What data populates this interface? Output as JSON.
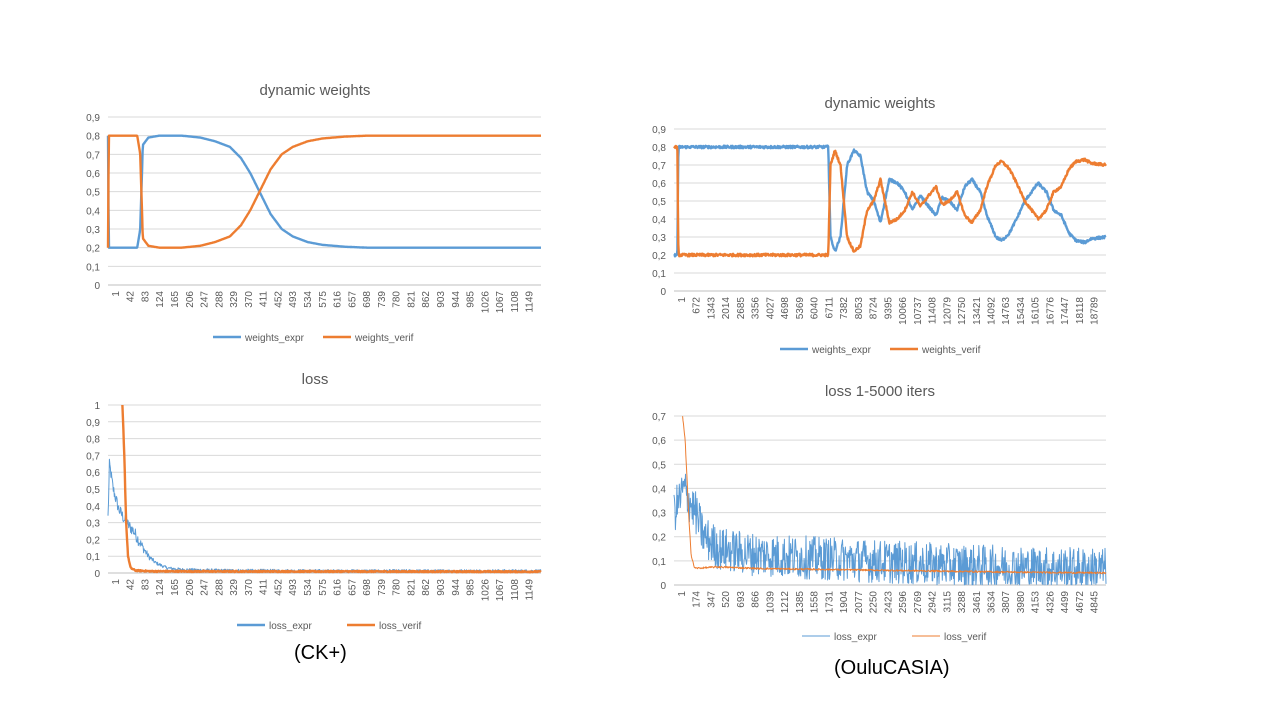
{
  "captions": {
    "left": "(CK+)",
    "right": "(OuluCASIA)"
  },
  "colors": {
    "expr": "#5B9BD5",
    "verif": "#ED7D31",
    "grid": "#d9d9d9",
    "text": "#595959"
  },
  "chart_data": [
    {
      "id": "ck-weights",
      "type": "line",
      "title": "dynamic weights",
      "ylim": [
        0,
        0.9
      ],
      "yticks": [
        "0",
        "0,1",
        "0,2",
        "0,3",
        "0,4",
        "0,5",
        "0,6",
        "0,7",
        "0,8",
        "0,9"
      ],
      "xticks": [
        "1",
        "42",
        "83",
        "124",
        "165",
        "206",
        "247",
        "288",
        "329",
        "370",
        "411",
        "452",
        "493",
        "534",
        "575",
        "616",
        "657",
        "698",
        "739",
        "780",
        "821",
        "862",
        "903",
        "944",
        "985",
        "1026",
        "1067",
        "1108",
        "1149"
      ],
      "xmax": 1170,
      "legend": [
        "weights_expr",
        "weights_verif"
      ],
      "series": [
        {
          "name": "weights_expr",
          "points": [
            [
              1,
              0.8
            ],
            [
              3,
              0.2
            ],
            [
              20,
              0.2
            ],
            [
              60,
              0.2
            ],
            [
              80,
              0.2
            ],
            [
              88,
              0.3
            ],
            [
              95,
              0.75
            ],
            [
              110,
              0.79
            ],
            [
              140,
              0.8
            ],
            [
              200,
              0.8
            ],
            [
              250,
              0.79
            ],
            [
              290,
              0.77
            ],
            [
              330,
              0.74
            ],
            [
              360,
              0.68
            ],
            [
              385,
              0.6
            ],
            [
              410,
              0.5
            ],
            [
              440,
              0.38
            ],
            [
              470,
              0.3
            ],
            [
              500,
              0.26
            ],
            [
              540,
              0.23
            ],
            [
              580,
              0.215
            ],
            [
              640,
              0.205
            ],
            [
              700,
              0.2
            ],
            [
              1170,
              0.2
            ]
          ]
        },
        {
          "name": "weights_verif",
          "points": [
            [
              1,
              0.2
            ],
            [
              3,
              0.8
            ],
            [
              20,
              0.8
            ],
            [
              60,
              0.8
            ],
            [
              80,
              0.8
            ],
            [
              88,
              0.7
            ],
            [
              95,
              0.25
            ],
            [
              110,
              0.21
            ],
            [
              140,
              0.2
            ],
            [
              200,
              0.2
            ],
            [
              250,
              0.21
            ],
            [
              290,
              0.23
            ],
            [
              330,
              0.26
            ],
            [
              360,
              0.32
            ],
            [
              385,
              0.4
            ],
            [
              410,
              0.5
            ],
            [
              440,
              0.62
            ],
            [
              470,
              0.7
            ],
            [
              500,
              0.74
            ],
            [
              540,
              0.77
            ],
            [
              580,
              0.785
            ],
            [
              640,
              0.795
            ],
            [
              700,
              0.8
            ],
            [
              1170,
              0.8
            ]
          ]
        }
      ]
    },
    {
      "id": "ck-loss",
      "type": "line",
      "title": "loss",
      "ylim": [
        0,
        1
      ],
      "yticks": [
        "0",
        "0,1",
        "0,2",
        "0,3",
        "0,4",
        "0,5",
        "0,6",
        "0,7",
        "0,8",
        "0,9",
        "1"
      ],
      "xticks": [
        "1",
        "42",
        "83",
        "124",
        "165",
        "206",
        "247",
        "288",
        "329",
        "370",
        "411",
        "452",
        "493",
        "534",
        "575",
        "616",
        "657",
        "698",
        "739",
        "780",
        "821",
        "862",
        "903",
        "944",
        "985",
        "1026",
        "1067",
        "1108",
        "1149"
      ],
      "xmax": 1170,
      "legend": [
        "loss_expr",
        "loss_verif"
      ],
      "series": [
        {
          "name": "loss_expr",
          "noise": 0.06,
          "decayNoise": true,
          "points": [
            [
              1,
              0.33
            ],
            [
              5,
              0.65
            ],
            [
              15,
              0.5
            ],
            [
              30,
              0.38
            ],
            [
              50,
              0.3
            ],
            [
              70,
              0.25
            ],
            [
              90,
              0.17
            ],
            [
              110,
              0.1
            ],
            [
              130,
              0.06
            ],
            [
              160,
              0.03
            ],
            [
              200,
              0.02
            ],
            [
              300,
              0.015
            ],
            [
              600,
              0.012
            ],
            [
              1170,
              0.012
            ]
          ]
        },
        {
          "name": "loss_verif",
          "noise": 0.006,
          "points": [
            [
              40,
              1.0
            ],
            [
              45,
              0.7
            ],
            [
              50,
              0.3
            ],
            [
              55,
              0.1
            ],
            [
              62,
              0.03
            ],
            [
              75,
              0.015
            ],
            [
              120,
              0.01
            ],
            [
              1170,
              0.008
            ]
          ]
        }
      ]
    },
    {
      "id": "oulu-weights",
      "type": "line",
      "title": "dynamic weights",
      "ylim": [
        0,
        0.9
      ],
      "yticks": [
        "0",
        "0,1",
        "0,2",
        "0,3",
        "0,4",
        "0,5",
        "0,6",
        "0,7",
        "0,8",
        "0,9"
      ],
      "xticks": [
        "1",
        "672",
        "1343",
        "2014",
        "2685",
        "3356",
        "4027",
        "4698",
        "5369",
        "6040",
        "6711",
        "7382",
        "8053",
        "8724",
        "9395",
        "10066",
        "10737",
        "11408",
        "12079",
        "12750",
        "13421",
        "14092",
        "14763",
        "15434",
        "16105",
        "16776",
        "17447",
        "18118",
        "18789"
      ],
      "xmax": 19460,
      "legend": [
        "weights_expr",
        "weights_verif"
      ],
      "series": [
        {
          "name": "weights_expr",
          "noise": 0.012,
          "points": [
            [
              1,
              0.2
            ],
            [
              150,
              0.2
            ],
            [
              200,
              0.8
            ],
            [
              6800,
              0.8
            ],
            [
              6950,
              0.8
            ],
            [
              7050,
              0.3
            ],
            [
              7250,
              0.22
            ],
            [
              7500,
              0.3
            ],
            [
              7800,
              0.7
            ],
            [
              8100,
              0.78
            ],
            [
              8400,
              0.75
            ],
            [
              8700,
              0.55
            ],
            [
              9000,
              0.5
            ],
            [
              9300,
              0.38
            ],
            [
              9700,
              0.62
            ],
            [
              10066,
              0.6
            ],
            [
              10400,
              0.55
            ],
            [
              10737,
              0.45
            ],
            [
              11100,
              0.53
            ],
            [
              11408,
              0.48
            ],
            [
              11800,
              0.42
            ],
            [
              12079,
              0.52
            ],
            [
              12400,
              0.5
            ],
            [
              12750,
              0.45
            ],
            [
              13100,
              0.58
            ],
            [
              13421,
              0.62
            ],
            [
              13800,
              0.55
            ],
            [
              14092,
              0.42
            ],
            [
              14500,
              0.3
            ],
            [
              14763,
              0.28
            ],
            [
              15100,
              0.32
            ],
            [
              15434,
              0.4
            ],
            [
              15800,
              0.5
            ],
            [
              16105,
              0.55
            ],
            [
              16400,
              0.6
            ],
            [
              16776,
              0.55
            ],
            [
              17100,
              0.45
            ],
            [
              17447,
              0.42
            ],
            [
              17800,
              0.32
            ],
            [
              18118,
              0.28
            ],
            [
              18500,
              0.27
            ],
            [
              18789,
              0.29
            ],
            [
              19460,
              0.3
            ]
          ]
        },
        {
          "name": "weights_verif",
          "noise": 0.012,
          "points": [
            [
              1,
              0.8
            ],
            [
              150,
              0.8
            ],
            [
              200,
              0.2
            ],
            [
              6800,
              0.2
            ],
            [
              6950,
              0.2
            ],
            [
              7050,
              0.7
            ],
            [
              7250,
              0.78
            ],
            [
              7500,
              0.7
            ],
            [
              7800,
              0.3
            ],
            [
              8100,
              0.22
            ],
            [
              8400,
              0.25
            ],
            [
              8700,
              0.45
            ],
            [
              9000,
              0.5
            ],
            [
              9300,
              0.62
            ],
            [
              9700,
              0.38
            ],
            [
              10066,
              0.4
            ],
            [
              10400,
              0.45
            ],
            [
              10737,
              0.55
            ],
            [
              11100,
              0.47
            ],
            [
              11408,
              0.52
            ],
            [
              11800,
              0.58
            ],
            [
              12079,
              0.48
            ],
            [
              12400,
              0.5
            ],
            [
              12750,
              0.55
            ],
            [
              13100,
              0.42
            ],
            [
              13421,
              0.38
            ],
            [
              13800,
              0.45
            ],
            [
              14092,
              0.58
            ],
            [
              14500,
              0.7
            ],
            [
              14763,
              0.72
            ],
            [
              15100,
              0.68
            ],
            [
              15434,
              0.6
            ],
            [
              15800,
              0.5
            ],
            [
              16105,
              0.45
            ],
            [
              16400,
              0.4
            ],
            [
              16776,
              0.45
            ],
            [
              17100,
              0.55
            ],
            [
              17447,
              0.58
            ],
            [
              17800,
              0.68
            ],
            [
              18118,
              0.72
            ],
            [
              18500,
              0.73
            ],
            [
              18789,
              0.71
            ],
            [
              19460,
              0.7
            ]
          ]
        }
      ]
    },
    {
      "id": "oulu-loss",
      "type": "line",
      "title": "loss 1-5000 iters",
      "ylim": [
        0,
        0.7
      ],
      "yticks": [
        "0",
        "0,1",
        "0,2",
        "0,3",
        "0,4",
        "0,5",
        "0,6",
        "0,7"
      ],
      "xticks": [
        "1",
        "174",
        "347",
        "520",
        "693",
        "866",
        "1039",
        "1212",
        "1385",
        "1558",
        "1731",
        "1904",
        "2077",
        "2250",
        "2423",
        "2596",
        "2769",
        "2942",
        "3115",
        "3288",
        "3461",
        "3634",
        "3807",
        "3980",
        "4153",
        "4326",
        "4499",
        "4672",
        "4845"
      ],
      "xmax": 5000,
      "legend": [
        "loss_expr",
        "loss_verif"
      ],
      "thin": true,
      "series": [
        {
          "name": "loss_expr",
          "noise": 0.09,
          "points": [
            [
              1,
              0.3
            ],
            [
              60,
              0.35
            ],
            [
              120,
              0.4
            ],
            [
              174,
              0.35
            ],
            [
              250,
              0.3
            ],
            [
              347,
              0.2
            ],
            [
              520,
              0.15
            ],
            [
              866,
              0.13
            ],
            [
              1212,
              0.12
            ],
            [
              1731,
              0.11
            ],
            [
              2250,
              0.1
            ],
            [
              2769,
              0.09
            ],
            [
              3288,
              0.08
            ],
            [
              3807,
              0.075
            ],
            [
              4326,
              0.07
            ],
            [
              5000,
              0.065
            ]
          ]
        },
        {
          "name": "loss_verif",
          "noise": 0.006,
          "points": [
            [
              100,
              0.7
            ],
            [
              130,
              0.6
            ],
            [
              170,
              0.3
            ],
            [
              200,
              0.12
            ],
            [
              240,
              0.07
            ],
            [
              300,
              0.07
            ],
            [
              500,
              0.075
            ],
            [
              1000,
              0.068
            ],
            [
              2000,
              0.063
            ],
            [
              3000,
              0.058
            ],
            [
              4000,
              0.053
            ],
            [
              5000,
              0.05
            ]
          ]
        }
      ]
    }
  ]
}
